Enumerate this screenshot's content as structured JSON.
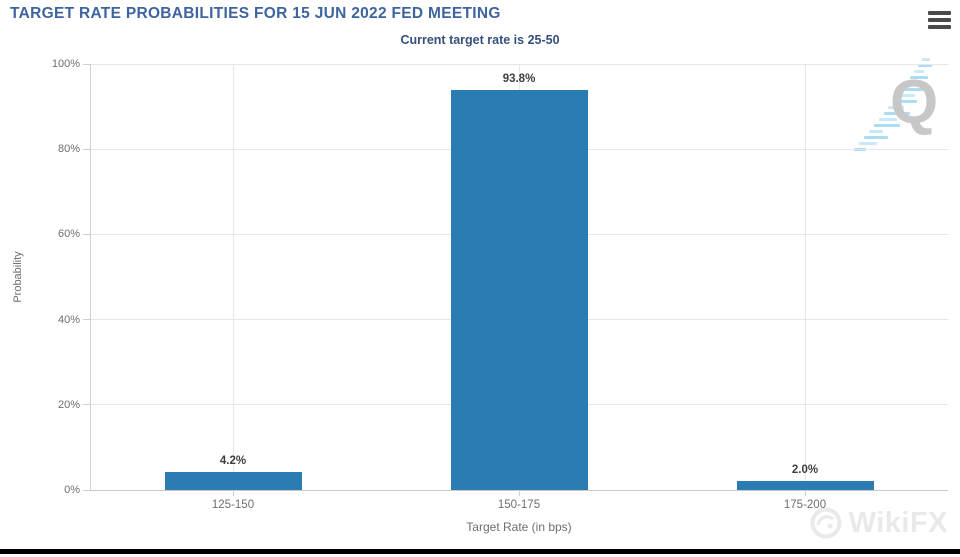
{
  "chart_data": {
    "type": "bar",
    "title": "TARGET RATE PROBABILITIES FOR 15 JUN 2022 FED MEETING",
    "subtitle": "Current target rate is 25-50",
    "categories": [
      "125-150",
      "150-175",
      "175-200"
    ],
    "values": [
      4.2,
      93.8,
      2.0
    ],
    "value_labels": [
      "4.2%",
      "93.8%",
      "2.0%"
    ],
    "xlabel": "Target Rate (in bps)",
    "ylabel": "Probability",
    "ylim": [
      0,
      100
    ],
    "yticks": [
      "0%",
      "20%",
      "40%",
      "60%",
      "80%",
      "100%"
    ],
    "grid": true,
    "legend_position": "none",
    "bar_color": "#2b7cb3"
  },
  "watermarks": {
    "quandl_letter": "Q",
    "wikifx_text": "WikiFX"
  },
  "colors": {
    "title_text": "#3e64a0",
    "subtitle_text": "#35507c",
    "bar": "#2b7cb3",
    "axis_text": "#6e6e6e",
    "value_label_text": "#3e3e3e",
    "gridline": "#e7e7e7",
    "quandl_gray": "#c7c7c7",
    "quandl_blue": "#a6daf2"
  }
}
